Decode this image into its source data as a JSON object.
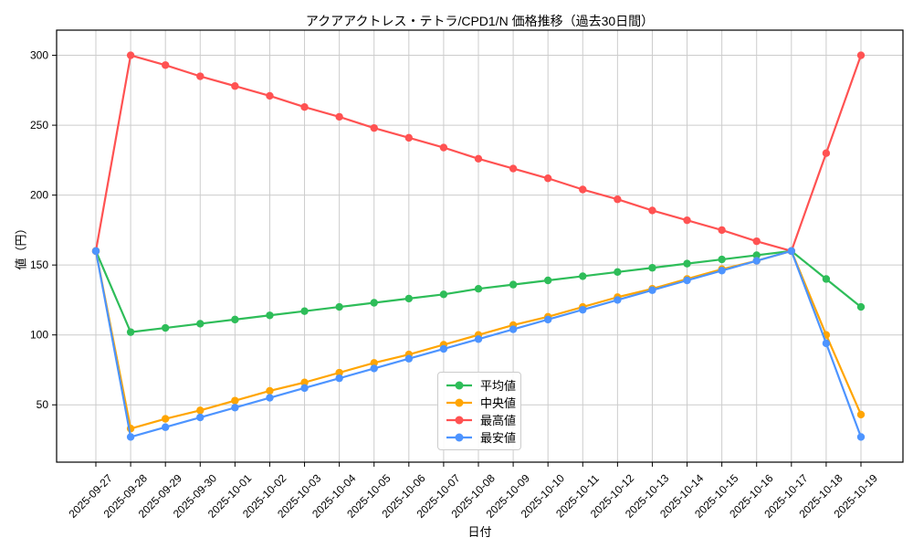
{
  "chart_data": {
    "type": "line",
    "title": "アクアアクトレス・テトラ/CPD1/N 価格推移（過去30日間）",
    "xlabel": "日付",
    "ylabel": "値（円）",
    "x": [
      "2025-09-27",
      "2025-09-28",
      "2025-09-29",
      "2025-09-30",
      "2025-10-01",
      "2025-10-02",
      "2025-10-03",
      "2025-10-04",
      "2025-10-05",
      "2025-10-06",
      "2025-10-07",
      "2025-10-08",
      "2025-10-09",
      "2025-10-10",
      "2025-10-11",
      "2025-10-12",
      "2025-10-13",
      "2025-10-14",
      "2025-10-15",
      "2025-10-16",
      "2025-10-17",
      "2025-10-18",
      "2025-10-19"
    ],
    "series": [
      {
        "key": "mean",
        "name": "平均値",
        "color": "#2ebd59",
        "values": [
          160,
          102,
          105,
          108,
          111,
          114,
          117,
          120,
          123,
          126,
          129,
          133,
          136,
          139,
          142,
          145,
          148,
          151,
          154,
          157,
          160,
          140,
          120
        ]
      },
      {
        "key": "median",
        "name": "中央値",
        "color": "#ffa502",
        "values": [
          160,
          33,
          40,
          46,
          53,
          60,
          66,
          73,
          80,
          86,
          93,
          100,
          107,
          113,
          120,
          127,
          133,
          140,
          147,
          153,
          160,
          100,
          43
        ]
      },
      {
        "key": "max",
        "name": "最高値",
        "color": "#ff5252",
        "values": [
          160,
          300,
          293,
          285,
          278,
          271,
          263,
          256,
          248,
          241,
          234,
          226,
          219,
          212,
          204,
          197,
          189,
          182,
          175,
          167,
          160,
          230,
          300
        ]
      },
      {
        "key": "min",
        "name": "最安値",
        "color": "#4d94ff",
        "values": [
          160,
          27,
          34,
          41,
          48,
          55,
          62,
          69,
          76,
          83,
          90,
          97,
          104,
          111,
          118,
          125,
          132,
          139,
          146,
          153,
          160,
          94,
          27
        ]
      }
    ],
    "yticks": [
      50,
      100,
      150,
      200,
      250,
      300
    ],
    "ylim": [
      9,
      318
    ],
    "grid": true,
    "grid_color": "#cccccc",
    "spine_color": "#000000",
    "legend_position": "inside-lower-center",
    "marker": "circle"
  }
}
